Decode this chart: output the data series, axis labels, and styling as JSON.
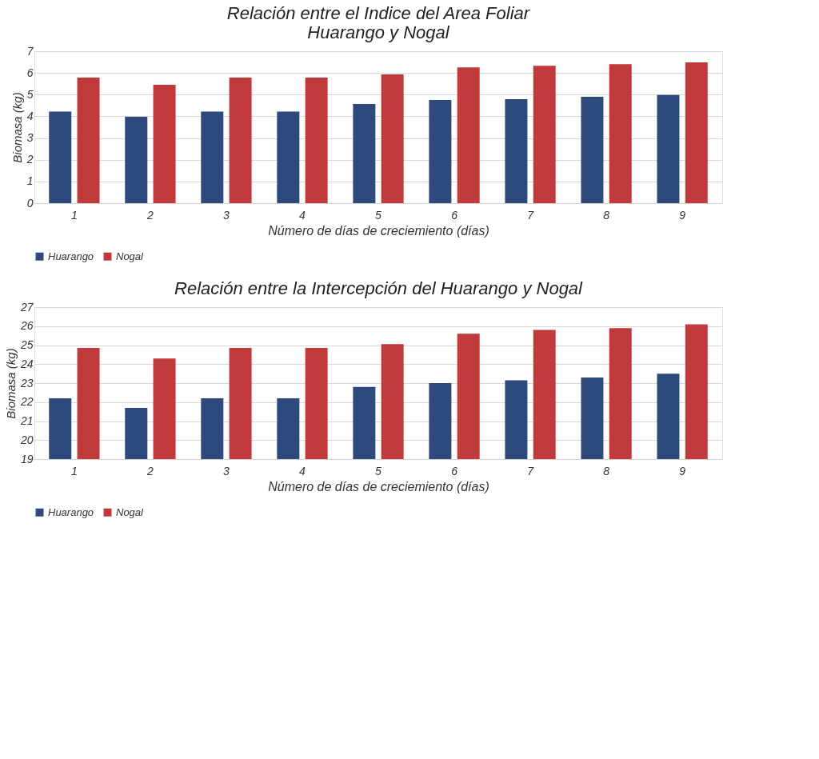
{
  "chart_data": [
    {
      "type": "bar",
      "title": [
        "Relación entre el Indice del Area Foliar",
        "Huarango y Nogal"
      ],
      "xlabel": "Número de días de creciemiento (días)",
      "ylabel": "Biomasa (kg)",
      "categories": [
        "1",
        "2",
        "3",
        "4",
        "5",
        "6",
        "7",
        "8",
        "9"
      ],
      "series": [
        {
          "name": "Huarango",
          "color": "#2e4a7d",
          "values": [
            4.22,
            3.98,
            4.22,
            4.22,
            4.57,
            4.75,
            4.79,
            4.9,
            4.98
          ]
        },
        {
          "name": "Nogal",
          "color": "#c0393b",
          "values": [
            5.78,
            5.45,
            5.78,
            5.78,
            5.93,
            6.25,
            6.33,
            6.4,
            6.48
          ]
        }
      ],
      "ylim": [
        0,
        7
      ],
      "yticks": [
        0,
        1,
        2,
        3,
        4,
        5,
        6,
        7
      ],
      "grid": "y",
      "legend": "bottom"
    },
    {
      "type": "bar",
      "title": "Relación entre la Intercepción del Huarango y Nogal",
      "xlabel": "Número de días de creciemiento (días)",
      "ylabel": "Biomasa (kg)",
      "categories": [
        "1",
        "2",
        "3",
        "4",
        "5",
        "6",
        "7",
        "8",
        "9"
      ],
      "series": [
        {
          "name": "Huarango",
          "color": "#2e4a7d",
          "values": [
            22.2,
            21.7,
            22.2,
            22.2,
            22.8,
            23.0,
            23.15,
            23.3,
            23.5
          ]
        },
        {
          "name": "Nogal",
          "color": "#c0393b",
          "values": [
            24.85,
            24.3,
            24.85,
            24.85,
            25.05,
            25.6,
            25.8,
            25.9,
            26.1
          ]
        }
      ],
      "ylim": [
        19,
        27
      ],
      "yticks": [
        19,
        20,
        21,
        22,
        23,
        24,
        25,
        26,
        27
      ],
      "grid": "y",
      "legend": "bottom"
    }
  ]
}
